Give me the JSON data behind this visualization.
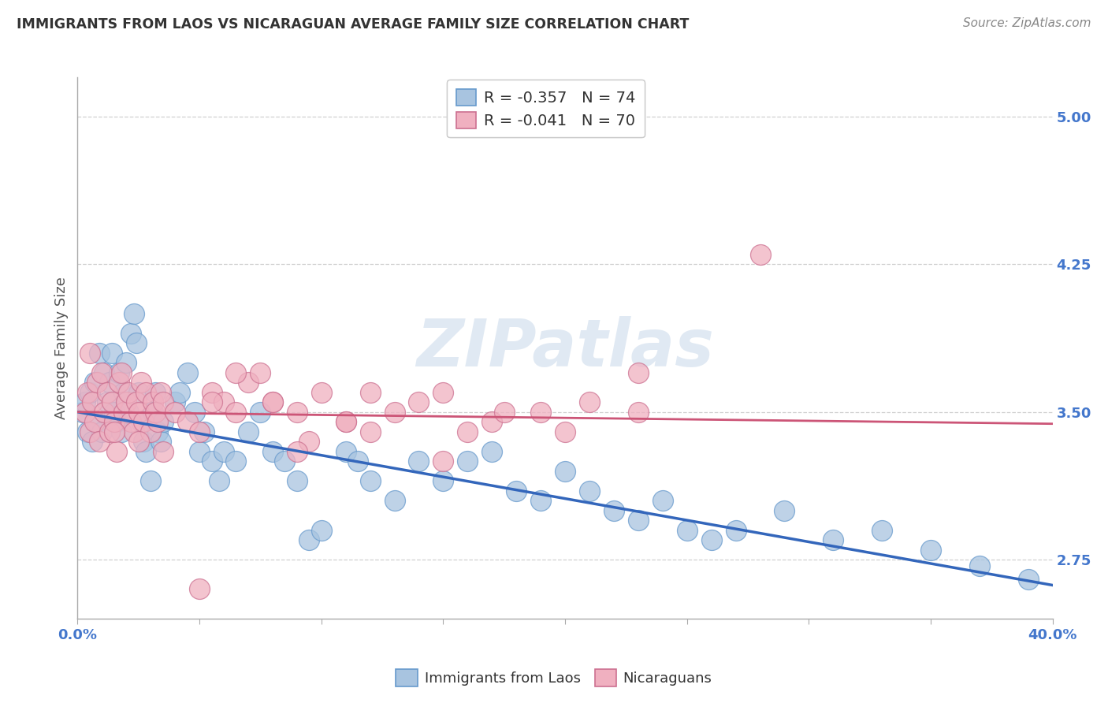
{
  "title": "IMMIGRANTS FROM LAOS VS NICARAGUAN AVERAGE FAMILY SIZE CORRELATION CHART",
  "source": "Source: ZipAtlas.com",
  "ylabel": "Average Family Size",
  "xlim": [
    0.0,
    0.4
  ],
  "ylim": [
    2.45,
    5.2
  ],
  "yticks": [
    2.75,
    3.5,
    4.25,
    5.0
  ],
  "xtick_positions": [
    0.0,
    0.05,
    0.1,
    0.15,
    0.2,
    0.25,
    0.3,
    0.35,
    0.4
  ],
  "blue_series": {
    "name": "Immigrants from Laos",
    "R": -0.357,
    "N": 74,
    "face_color": "#a8c4e0",
    "edge_color": "#6699cc",
    "line_color": "#3366bb",
    "x": [
      0.002,
      0.003,
      0.004,
      0.005,
      0.006,
      0.007,
      0.008,
      0.009,
      0.01,
      0.011,
      0.012,
      0.013,
      0.014,
      0.015,
      0.016,
      0.017,
      0.018,
      0.019,
      0.02,
      0.021,
      0.022,
      0.023,
      0.024,
      0.025,
      0.026,
      0.027,
      0.028,
      0.03,
      0.031,
      0.032,
      0.033,
      0.034,
      0.035,
      0.04,
      0.042,
      0.045,
      0.048,
      0.05,
      0.052,
      0.055,
      0.058,
      0.06,
      0.065,
      0.07,
      0.075,
      0.08,
      0.085,
      0.09,
      0.095,
      0.1,
      0.11,
      0.115,
      0.12,
      0.13,
      0.14,
      0.15,
      0.16,
      0.17,
      0.18,
      0.19,
      0.2,
      0.21,
      0.22,
      0.23,
      0.24,
      0.25,
      0.26,
      0.27,
      0.29,
      0.31,
      0.33,
      0.35,
      0.37,
      0.39
    ],
    "y": [
      3.5,
      3.55,
      3.4,
      3.6,
      3.35,
      3.65,
      3.45,
      3.8,
      3.4,
      3.7,
      3.55,
      3.65,
      3.8,
      3.5,
      3.45,
      3.7,
      3.4,
      3.6,
      3.75,
      3.5,
      3.9,
      4.0,
      3.85,
      3.6,
      3.45,
      3.35,
      3.3,
      3.15,
      3.5,
      3.6,
      3.4,
      3.35,
      3.45,
      3.55,
      3.6,
      3.7,
      3.5,
      3.3,
      3.4,
      3.25,
      3.15,
      3.3,
      3.25,
      3.4,
      3.5,
      3.3,
      3.25,
      3.15,
      2.85,
      2.9,
      3.3,
      3.25,
      3.15,
      3.05,
      3.25,
      3.15,
      3.25,
      3.3,
      3.1,
      3.05,
      3.2,
      3.1,
      3.0,
      2.95,
      3.05,
      2.9,
      2.85,
      2.9,
      3.0,
      2.85,
      2.9,
      2.8,
      2.72,
      2.65
    ]
  },
  "pink_series": {
    "name": "Nicaraguans",
    "R": -0.041,
    "N": 70,
    "face_color": "#f0b0c0",
    "edge_color": "#cc7090",
    "line_color": "#cc5577",
    "x": [
      0.003,
      0.004,
      0.005,
      0.006,
      0.007,
      0.008,
      0.009,
      0.01,
      0.011,
      0.012,
      0.013,
      0.014,
      0.015,
      0.016,
      0.017,
      0.018,
      0.019,
      0.02,
      0.021,
      0.022,
      0.023,
      0.024,
      0.025,
      0.026,
      0.027,
      0.028,
      0.03,
      0.031,
      0.032,
      0.033,
      0.034,
      0.035,
      0.04,
      0.045,
      0.05,
      0.055,
      0.06,
      0.065,
      0.07,
      0.075,
      0.08,
      0.09,
      0.1,
      0.11,
      0.12,
      0.13,
      0.14,
      0.15,
      0.17,
      0.19,
      0.21,
      0.23,
      0.005,
      0.015,
      0.025,
      0.035,
      0.055,
      0.065,
      0.08,
      0.095,
      0.15,
      0.2,
      0.12,
      0.11,
      0.28,
      0.05,
      0.175,
      0.09,
      0.23,
      0.16
    ],
    "y": [
      3.5,
      3.6,
      3.4,
      3.55,
      3.45,
      3.65,
      3.35,
      3.7,
      3.5,
      3.6,
      3.4,
      3.55,
      3.45,
      3.3,
      3.65,
      3.7,
      3.5,
      3.55,
      3.6,
      3.45,
      3.4,
      3.55,
      3.5,
      3.65,
      3.45,
      3.6,
      3.4,
      3.55,
      3.5,
      3.45,
      3.6,
      3.55,
      3.5,
      3.45,
      3.4,
      3.6,
      3.55,
      3.5,
      3.65,
      3.7,
      3.55,
      3.5,
      3.6,
      3.45,
      3.4,
      3.5,
      3.55,
      3.6,
      3.45,
      3.5,
      3.55,
      3.7,
      3.8,
      3.4,
      3.35,
      3.3,
      3.55,
      3.7,
      3.55,
      3.35,
      3.25,
      3.4,
      3.6,
      3.45,
      4.3,
      2.6,
      3.5,
      3.3,
      3.5,
      3.4
    ]
  },
  "watermark_text": "ZIPatlas",
  "grid_color": "#d0d0d0",
  "title_color": "#333333",
  "source_color": "#888888",
  "tick_label_color": "#4477cc",
  "ylabel_color": "#555555",
  "legend_label_color": "#333333",
  "legend_value_color": "#4477cc"
}
